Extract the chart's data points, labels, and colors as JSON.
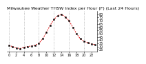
{
  "title": "Milwaukee Weather THSW Index per Hour (F) (Last 24 Hours)",
  "hours": [
    0,
    1,
    2,
    3,
    4,
    5,
    6,
    7,
    8,
    9,
    10,
    11,
    12,
    13,
    14,
    15,
    16,
    17,
    18,
    19,
    20,
    21,
    22,
    23
  ],
  "values": [
    32,
    30,
    28,
    27,
    29,
    30,
    31,
    32,
    35,
    42,
    52,
    63,
    72,
    78,
    80,
    76,
    70,
    60,
    50,
    42,
    38,
    36,
    34,
    33
  ],
  "line_color": "#dd0000",
  "marker_color": "#000000",
  "bg_color": "#ffffff",
  "grid_color": "#999999",
  "title_color": "#000000",
  "ylim": [
    22,
    85
  ],
  "yticks": [
    25,
    30,
    35,
    40,
    45,
    50,
    55,
    60,
    65,
    70,
    75,
    80
  ],
  "xtick_step": 2,
  "vgrid_step": 4,
  "title_fontsize": 4.5,
  "tick_fontsize": 3.5,
  "linewidth": 0.7,
  "markersize": 1.4
}
